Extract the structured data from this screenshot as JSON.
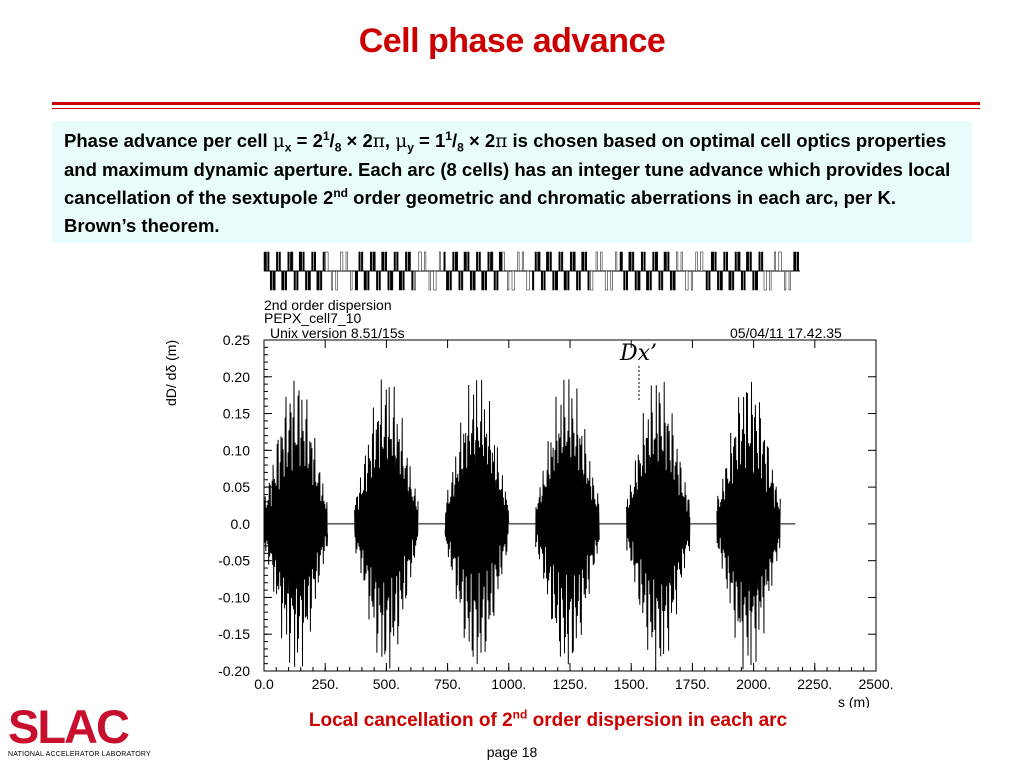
{
  "title": "Cell phase advance",
  "description": {
    "t1": "Phase advance per cell ",
    "mu": "μ",
    "sub_x": "x",
    "t2": " = 2",
    "sup_1a": "1",
    "slash_a": "/",
    "sub_8a": "8",
    "t3": " × 2",
    "pi_a": "π",
    "t4": ", ",
    "mu2": "μ",
    "sub_y": "y",
    "t5": " = 1",
    "sup_1b": "1",
    "slash_b": "/",
    "sub_8b": "8",
    "t6": " × 2",
    "pi_b": "π",
    "t7": " is chosen based on optimal cell optics properties and maximum dynamic aperture. Each arc (8 cells) has an integer tune advance which provides local cancellation of the sextupole 2",
    "sup_nd": "nd",
    "t8": " order geometric and chromatic aberrations in each arc, per K. Brown’s theorem."
  },
  "chart_data": {
    "type": "line",
    "header_lines": [
      "2nd order dispersion",
      "PEPX_cell7_10",
      "Unix version 8.51/15s"
    ],
    "date_stamp": "05/04/11  17.42.35",
    "annotation": "Dx’",
    "ylabel": "dD/ dδ (m)",
    "xlabel": "s (m)",
    "xlim": [
      0,
      2500
    ],
    "ylim": [
      -0.2,
      0.25
    ],
    "x_ticks": [
      "0.0",
      "250.",
      "500.",
      "750.",
      "1000.",
      "1250.",
      "1500.",
      "1750.",
      "2000.",
      "2250.",
      "2500."
    ],
    "y_ticks": [
      "0.25",
      "0.20",
      "0.15",
      "0.10",
      "0.05",
      "0.0",
      "-0.05",
      "-0.10",
      "-0.15",
      "-0.20"
    ],
    "series": [
      {
        "oscillation_amplitude": 0.21,
        "arcs": [
          {
            "s_start": 0,
            "s_end": 260
          },
          {
            "s_start": 370,
            "s_end": 630
          },
          {
            "s_start": 740,
            "s_end": 1000
          },
          {
            "s_start": 1110,
            "s_end": 1370
          },
          {
            "s_start": 1480,
            "s_end": 1740
          },
          {
            "s_start": 1850,
            "s_end": 2110
          }
        ],
        "zero_regions": [
          {
            "s_start": 260,
            "s_end": 370
          },
          {
            "s_start": 630,
            "s_end": 740
          },
          {
            "s_start": 1000,
            "s_end": 1110
          },
          {
            "s_start": 1370,
            "s_end": 1480
          },
          {
            "s_start": 1740,
            "s_end": 1850
          },
          {
            "s_start": 2110,
            "s_end": 2170
          }
        ]
      }
    ],
    "grid": false,
    "legend": "none"
  },
  "caption": {
    "text1": "Local cancellation of 2",
    "sup": "nd",
    "text2": " order dispersion in each arc"
  },
  "page_label": "page 18",
  "logo": {
    "name": "SLAC",
    "subtitle": "NATIONAL ACCELERATOR LABORATORY"
  },
  "colors": {
    "title": "#cc0000",
    "rule": "#cc0000",
    "box_background": "#e8fcfc",
    "caption": "#cc0000",
    "logo": "#c8102e",
    "trace": "#000000"
  }
}
